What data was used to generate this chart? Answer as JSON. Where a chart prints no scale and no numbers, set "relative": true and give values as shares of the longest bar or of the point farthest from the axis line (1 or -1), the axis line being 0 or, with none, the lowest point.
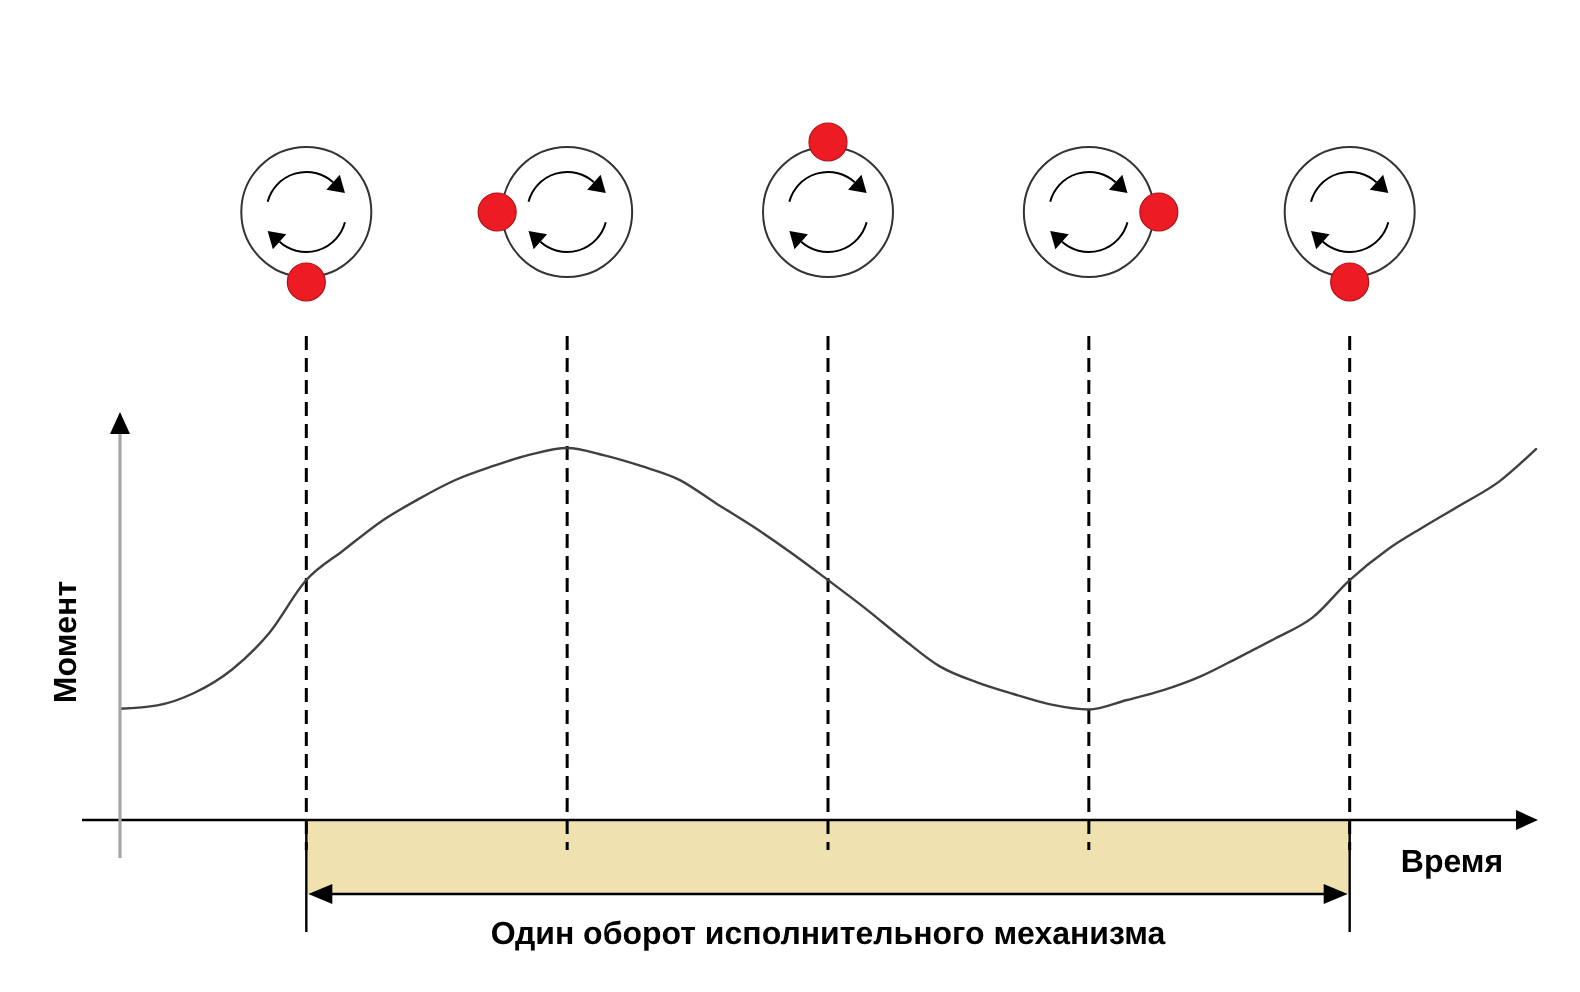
{
  "chart_data": {
    "type": "line",
    "xlabel": "Время",
    "ylabel": "Момент",
    "relative": true,
    "grid": "x",
    "categories": [
      null,
      null,
      null,
      null,
      null,
      null,
      null,
      null,
      null,
      null,
      null,
      null,
      null,
      null,
      null,
      null,
      null,
      null,
      null,
      null,
      null,
      null,
      null,
      null,
      null,
      null,
      null,
      null,
      null,
      null,
      null,
      null,
      null,
      null,
      null,
      null,
      null,
      null,
      null
    ],
    "series": [
      {
        "color": "#404040",
        "values": [
          0.299,
          0.308,
          0.342,
          0.404,
          0.502,
          0.645,
          0.725,
          0.802,
          0.862,
          0.914,
          0.951,
          0.982,
          1,
          0.98,
          0.951,
          0.915,
          0.851,
          0.788,
          0.719,
          0.645,
          0.569,
          0.488,
          0.413,
          0.37,
          0.338,
          0.31,
          0.297,
          0.322,
          0.349,
          0.386,
          0.436,
          0.488,
          0.544,
          0.645,
          0.726,
          0.789,
          0.848,
          0.909,
          0.997
        ]
      }
    ],
    "annotations": [
      "Один оборот исполнительного механизма"
    ]
  }
}
